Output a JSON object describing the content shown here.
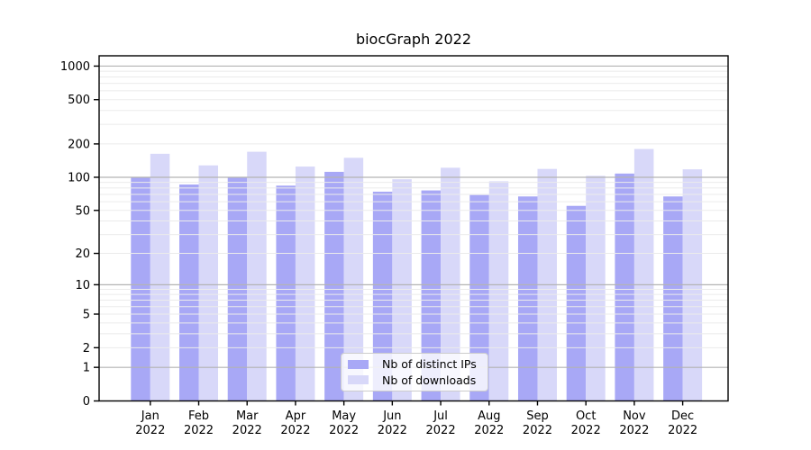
{
  "chart_data": {
    "type": "bar",
    "title": "biocGraph 2022",
    "categories": [
      "Jan",
      "Feb",
      "Mar",
      "Apr",
      "May",
      "Jun",
      "Jul",
      "Aug",
      "Sep",
      "Oct",
      "Nov",
      "Dec"
    ],
    "year_label": "2022",
    "series": [
      {
        "name": "Nb of distinct IPs",
        "color": "#a8a8f6",
        "values": [
          100,
          86,
          100,
          84,
          112,
          74,
          76,
          69,
          67,
          55,
          108,
          67
        ]
      },
      {
        "name": "Nb of downloads",
        "color": "#d8d8f9",
        "values": [
          163,
          128,
          170,
          125,
          150,
          96,
          122,
          92,
          119,
          103,
          180,
          118
        ]
      }
    ],
    "xlabel": "",
    "ylabel": "",
    "yscale": "log1p",
    "ylim": [
      0,
      1000
    ],
    "yticks": [
      0,
      1,
      2,
      5,
      10,
      20,
      50,
      100,
      200,
      500,
      1000
    ],
    "grid": {
      "on": true,
      "major_at": [
        1,
        10,
        100,
        1000
      ],
      "major_color": "#b3b3b3",
      "minor_color": "#ebebeb"
    },
    "legend_position": "lower-center",
    "axis_color": "#000000",
    "text_color": "#000000"
  }
}
